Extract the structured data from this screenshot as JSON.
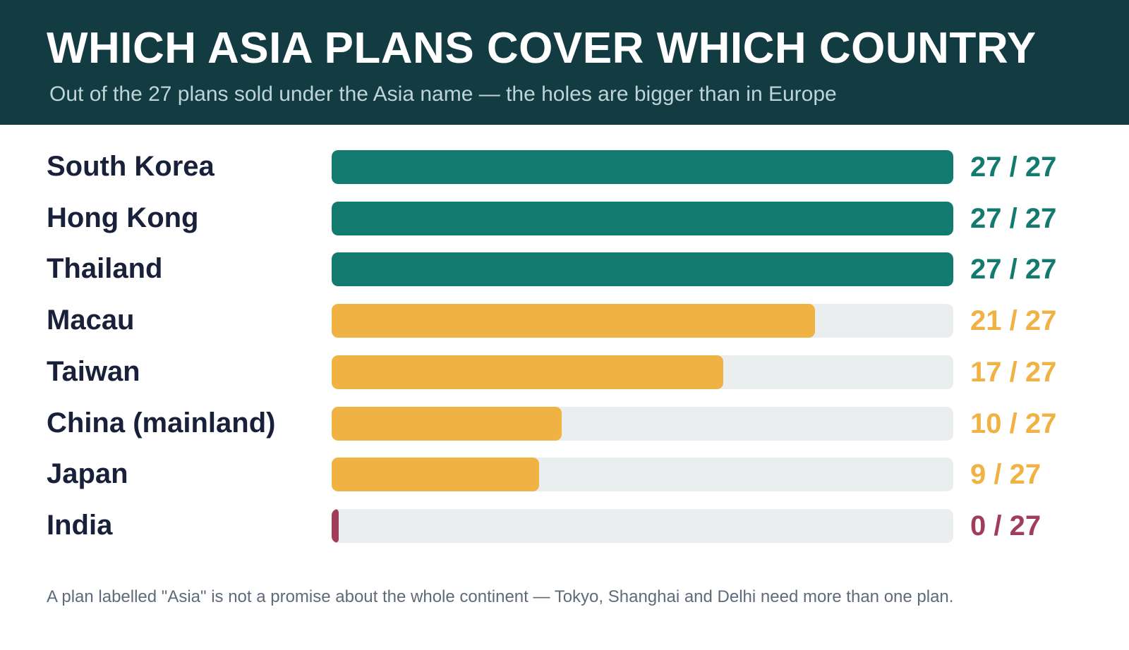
{
  "header": {
    "title": "WHICH ASIA PLANS COVER WHICH COUNTRY",
    "subtitle": "Out of the 27 plans sold under the Asia name — the holes are bigger than in Europe"
  },
  "colors": {
    "header_bg": "#133b42",
    "full": "#137a6f",
    "partial": "#f0b242",
    "none": "#a03d5a",
    "track": "#ebeeee"
  },
  "chart_data": {
    "type": "bar",
    "orientation": "horizontal",
    "title": "WHICH ASIA PLANS COVER WHICH COUNTRY",
    "subtitle": "Out of the 27 plans sold under the Asia name — the holes are bigger than in Europe",
    "total": 27,
    "xlim": [
      0,
      27
    ],
    "grid": false,
    "categories": [
      "South Korea",
      "Hong Kong",
      "Thailand",
      "Macau",
      "Taiwan",
      "China (mainland)",
      "Japan",
      "India"
    ],
    "values": [
      27,
      27,
      27,
      21,
      17,
      10,
      9,
      0
    ],
    "value_labels": [
      "27 / 27",
      "27 / 27",
      "27 / 27",
      "21 / 27",
      "17 / 27",
      "10 / 27",
      "9 / 27",
      "0 / 27"
    ],
    "status": [
      "full",
      "full",
      "full",
      "partial",
      "partial",
      "partial",
      "partial",
      "none"
    ]
  },
  "footnote": "A plan labelled \"Asia\" is not a promise about the whole continent — Tokyo, Shanghai and Delhi need more than one plan."
}
